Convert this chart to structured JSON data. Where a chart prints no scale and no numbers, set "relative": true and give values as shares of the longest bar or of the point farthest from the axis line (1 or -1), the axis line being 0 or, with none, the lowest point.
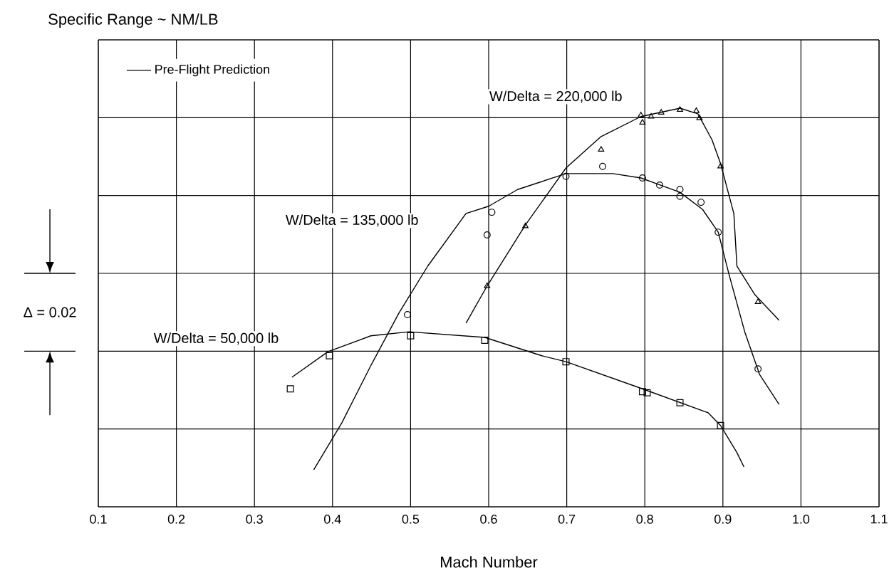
{
  "chart_data": {
    "type": "line",
    "relative": true,
    "xlabel": "Mach Number",
    "xlim": [
      0.1,
      1.1
    ],
    "xticks": [
      0.1,
      0.2,
      0.3,
      0.4,
      0.5,
      0.6,
      0.7,
      0.8,
      0.9,
      {
        "value": 1.0,
        "label": "1.0"
      },
      1.1
    ],
    "grid": true,
    "legend": "top left",
    "annotations": [
      "Specific Range ~ NM/LB",
      "Δ = 0.02",
      "W/Delta = 220,000 lb",
      "W/Delta = 135,000 lb",
      "W/Delta = 50,000 lb"
    ],
    "series": [
      {
        "name": "Pre-Flight Prediction",
        "color": "#000000",
        "x": [
          0.571,
          0.598,
          0.647,
          0.699,
          0.744,
          0.795,
          0.845,
          0.868,
          0.886,
          0.897,
          0.914,
          0.918,
          0.941,
          0.972
        ],
        "values": [
          0.461,
          0.554,
          0.707,
          0.85,
          0.929,
          0.979,
          1.0,
          0.986,
          0.921,
          0.861,
          0.736,
          0.604,
          0.532,
          0.468
        ]
      },
      {
        "color": "#000000",
        "x": [
          0.376,
          0.412,
          0.449,
          0.485,
          0.522,
          0.571,
          0.6,
          0.637,
          0.699,
          0.759,
          0.795,
          0.845,
          0.874,
          0.894,
          0.908,
          0.928,
          0.947,
          0.972
        ],
        "values": [
          0.093,
          0.211,
          0.354,
          0.486,
          0.604,
          0.736,
          0.754,
          0.796,
          0.836,
          0.836,
          0.825,
          0.789,
          0.746,
          0.689,
          0.582,
          0.439,
          0.332,
          0.257
        ]
      },
      {
        "color": "#000000",
        "x": [
          0.348,
          0.394,
          0.449,
          0.498,
          0.595,
          0.668,
          0.699,
          0.797,
          0.881,
          0.897,
          0.918,
          0.927
        ],
        "values": [
          0.325,
          0.389,
          0.429,
          0.439,
          0.425,
          0.379,
          0.364,
          0.296,
          0.236,
          0.204,
          0.136,
          0.1
        ]
      },
      {
        "type": "scatter",
        "marker": "triangle",
        "color": "#000000",
        "x": [
          0.598,
          0.647,
          0.744,
          0.795,
          0.797,
          0.808,
          0.821,
          0.845,
          0.866,
          0.87,
          0.897,
          0.945
        ],
        "values": [
          0.554,
          0.704,
          0.896,
          0.982,
          0.964,
          0.979,
          0.989,
          0.996,
          0.993,
          0.975,
          0.854,
          0.514
        ]
      },
      {
        "type": "scatter",
        "marker": "circle",
        "color": "#000000",
        "x": [
          0.496,
          0.598,
          0.604,
          0.699,
          0.746,
          0.797,
          0.819,
          0.845,
          0.845,
          0.872,
          0.894,
          0.945
        ],
        "values": [
          0.482,
          0.682,
          0.739,
          0.829,
          0.854,
          0.825,
          0.807,
          0.796,
          0.779,
          0.764,
          0.689,
          0.346
        ]
      },
      {
        "type": "scatter",
        "marker": "square",
        "color": "#000000",
        "x": [
          0.346,
          0.396,
          0.5,
          0.595,
          0.699,
          0.797,
          0.803,
          0.845,
          0.897
        ],
        "values": [
          0.296,
          0.379,
          0.429,
          0.418,
          0.364,
          0.289,
          0.286,
          0.261,
          0.204
        ]
      }
    ]
  }
}
